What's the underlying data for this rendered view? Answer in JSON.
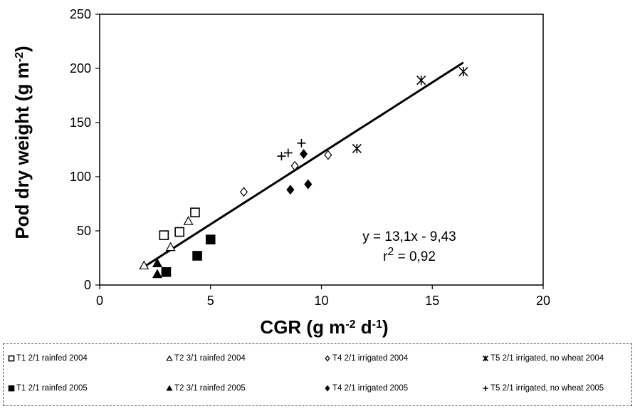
{
  "chart_data": {
    "type": "scatter",
    "xlabel_main": "CGR (g m",
    "xlabel_sup1": "-2",
    "xlabel_mid": " d",
    "xlabel_sup2": "-1",
    "xlabel_end": ")",
    "ylabel_main": "Pod dry weight (g m",
    "ylabel_sup": "-2",
    "ylabel_end": ")",
    "xlim": [
      0,
      20
    ],
    "ylim": [
      0,
      250
    ],
    "xticks": [
      "0",
      "5",
      "10",
      "15",
      "20"
    ],
    "yticks": [
      "0",
      "50",
      "100",
      "150",
      "200",
      "250"
    ],
    "grid": false,
    "legend_position": "bottom",
    "equation": "y = 13,1x  - 9,43",
    "r2_label_main": "r",
    "r2_label_sup": "2",
    "r2_label_end": " = 0,92",
    "trendline": {
      "slope": 13.1,
      "intercept": -9.43,
      "x_range": [
        2.0,
        16.4
      ]
    },
    "series": [
      {
        "name": "T1 2/1 rainfed  2004",
        "marker": "open-square",
        "points": [
          [
            2.9,
            46
          ],
          [
            3.6,
            49
          ],
          [
            4.3,
            67
          ]
        ]
      },
      {
        "name": "T2 3/1  rainfed 2004",
        "marker": "open-triangle",
        "points": [
          [
            2.0,
            18
          ],
          [
            3.2,
            35
          ],
          [
            4.0,
            59
          ]
        ]
      },
      {
        "name": "T4 2/1 irrigated 2004",
        "marker": "open-diamond",
        "points": [
          [
            6.5,
            86
          ],
          [
            8.8,
            110
          ],
          [
            10.3,
            120
          ]
        ]
      },
      {
        "name": "T5 2/1 irrigated, no wheat 2004",
        "marker": "star",
        "points": [
          [
            11.6,
            126
          ],
          [
            14.5,
            189
          ],
          [
            16.4,
            197
          ]
        ]
      },
      {
        "name": "T1 2/1 rainfed 2005",
        "marker": "filled-square",
        "points": [
          [
            3.0,
            12
          ],
          [
            4.4,
            27
          ],
          [
            5.0,
            42
          ]
        ]
      },
      {
        "name": "T2 3/1 rainfed 2005",
        "marker": "filled-triangle",
        "points": [
          [
            2.6,
            10
          ],
          [
            2.6,
            20
          ]
        ]
      },
      {
        "name": "T4 2/1 irrigated 2005",
        "marker": "filled-diamond",
        "points": [
          [
            8.6,
            88
          ],
          [
            9.2,
            121
          ],
          [
            9.4,
            93
          ]
        ]
      },
      {
        "name": "T5 2/1 irrigated, no wheat 2005",
        "marker": "plus",
        "points": [
          [
            8.2,
            119
          ],
          [
            8.5,
            122
          ],
          [
            9.1,
            131
          ]
        ]
      }
    ]
  }
}
